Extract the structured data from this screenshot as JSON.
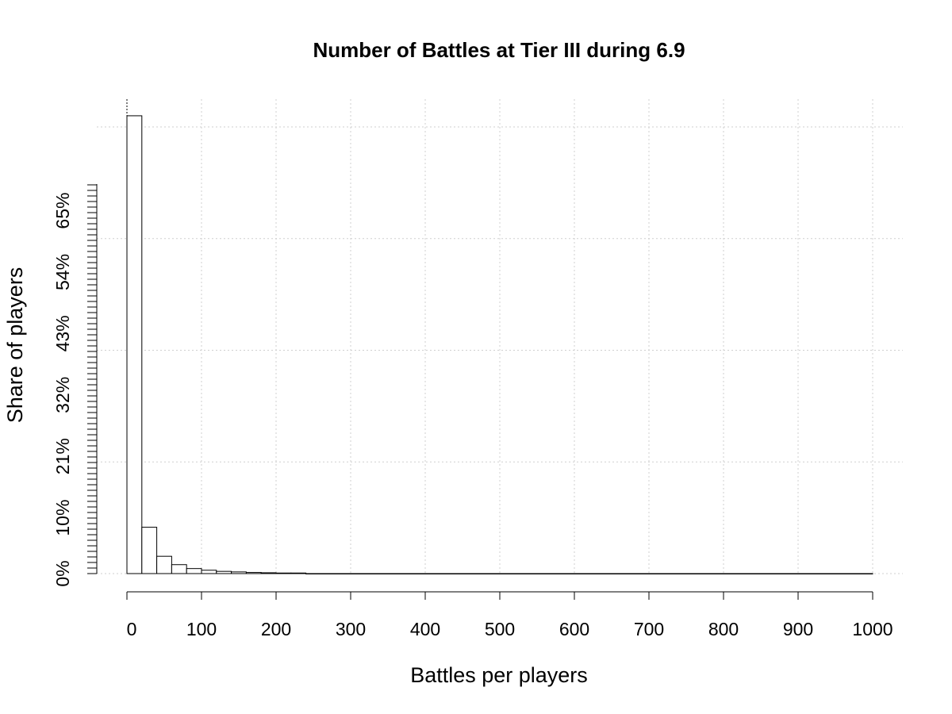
{
  "chart_data": {
    "type": "bar",
    "title": "Number of Battles at Tier III during 6.9",
    "xlabel": "Battles per players",
    "ylabel": "Share of players",
    "bin_width": 20,
    "x_ticks": [
      0,
      100,
      200,
      300,
      400,
      500,
      600,
      700,
      800,
      900,
      1000
    ],
    "x_tick_labels": [
      "0",
      "100",
      "200",
      "300",
      "400",
      "500",
      "600",
      "700",
      "800",
      "900",
      "1000"
    ],
    "y_tick_labels": [
      "0%",
      "10%",
      "21%",
      "32%",
      "43%",
      "54%",
      "65%"
    ],
    "y_tick_values": [
      0,
      0.1,
      0.21,
      0.32,
      0.43,
      0.54,
      0.65
    ],
    "bins": [
      {
        "x0": 0,
        "x1": 20,
        "value": 0.82
      },
      {
        "x0": 20,
        "x1": 40,
        "value": 0.083
      },
      {
        "x0": 40,
        "x1": 60,
        "value": 0.031
      },
      {
        "x0": 60,
        "x1": 80,
        "value": 0.016
      },
      {
        "x0": 80,
        "x1": 100,
        "value": 0.009
      },
      {
        "x0": 100,
        "x1": 120,
        "value": 0.006
      },
      {
        "x0": 120,
        "x1": 140,
        "value": 0.004
      },
      {
        "x0": 140,
        "x1": 160,
        "value": 0.003
      },
      {
        "x0": 160,
        "x1": 180,
        "value": 0.002
      },
      {
        "x0": 180,
        "x1": 200,
        "value": 0.0015
      },
      {
        "x0": 200,
        "x1": 220,
        "value": 0.001
      },
      {
        "x0": 220,
        "x1": 240,
        "value": 0.001
      },
      {
        "x0": 240,
        "x1": 1000,
        "value": 0
      }
    ],
    "xlim": [
      0,
      1000
    ],
    "ylim": [
      0,
      0.82
    ],
    "grid": true,
    "grid_y_values": [
      0,
      0.2,
      0.4,
      0.6,
      0.8
    ]
  }
}
